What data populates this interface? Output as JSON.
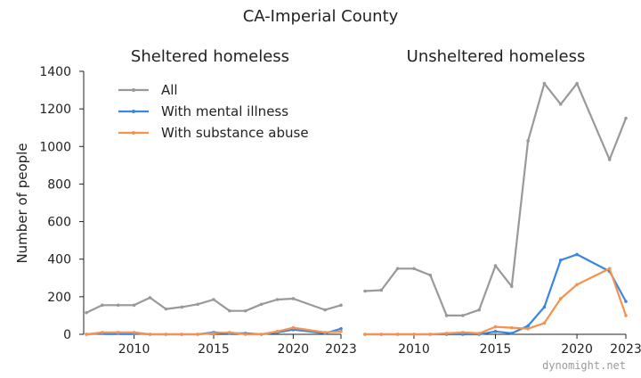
{
  "chart_data": {
    "type": "line",
    "title": "CA-Imperial County",
    "ylabel": "Number of people",
    "ylim": [
      0,
      1400
    ],
    "yticks": [
      0,
      200,
      400,
      600,
      800,
      1000,
      1200,
      1400
    ],
    "xlim": [
      2007,
      2023
    ],
    "xticks": [
      2010,
      2015,
      2020,
      2023
    ],
    "legend": {
      "placement": "top-left",
      "entries": [
        "All",
        "With mental illness",
        "With substance abuse"
      ]
    },
    "series_colors": {
      "All": "#999999",
      "With mental illness": "#3a86e0",
      "With substance abuse": "#f5924e"
    },
    "watermark": "dynomight.net",
    "panels": [
      {
        "subtitle": "Sheltered homeless",
        "series": [
          {
            "name": "All",
            "x": [
              2007,
              2008,
              2009,
              2010,
              2011,
              2012,
              2013,
              2014,
              2015,
              2016,
              2017,
              2018,
              2019,
              2020,
              2022,
              2023
            ],
            "values": [
              115,
              155,
              155,
              155,
              195,
              135,
              145,
              160,
              185,
              125,
              125,
              160,
              185,
              190,
              130,
              155
            ]
          },
          {
            "name": "With mental illness",
            "x": [
              2007,
              2008,
              2009,
              2010,
              2011,
              2012,
              2013,
              2014,
              2015,
              2016,
              2017,
              2018,
              2019,
              2020,
              2022,
              2023
            ],
            "values": [
              0,
              5,
              5,
              5,
              0,
              0,
              0,
              0,
              10,
              5,
              5,
              0,
              10,
              25,
              5,
              30
            ]
          },
          {
            "name": "With substance abuse",
            "x": [
              2007,
              2008,
              2009,
              2010,
              2011,
              2012,
              2013,
              2014,
              2015,
              2016,
              2017,
              2018,
              2019,
              2020,
              2022,
              2023
            ],
            "values": [
              0,
              10,
              10,
              10,
              0,
              0,
              0,
              0,
              5,
              10,
              0,
              0,
              15,
              35,
              10,
              15
            ]
          }
        ]
      },
      {
        "subtitle": "Unsheltered homeless",
        "series": [
          {
            "name": "All",
            "x": [
              2007,
              2008,
              2009,
              2010,
              2011,
              2012,
              2013,
              2014,
              2015,
              2016,
              2017,
              2018,
              2019,
              2020,
              2022,
              2023
            ],
            "values": [
              230,
              235,
              350,
              350,
              315,
              100,
              100,
              130,
              365,
              255,
              1030,
              1335,
              1225,
              1335,
              930,
              1150
            ]
          },
          {
            "name": "With mental illness",
            "x": [
              2007,
              2008,
              2009,
              2010,
              2011,
              2012,
              2013,
              2014,
              2015,
              2016,
              2017,
              2018,
              2019,
              2020,
              2022,
              2023
            ],
            "values": [
              0,
              0,
              0,
              0,
              0,
              0,
              0,
              0,
              15,
              5,
              45,
              145,
              395,
              425,
              335,
              175
            ]
          },
          {
            "name": "With substance abuse",
            "x": [
              2007,
              2008,
              2009,
              2010,
              2011,
              2012,
              2013,
              2014,
              2015,
              2016,
              2017,
              2018,
              2019,
              2020,
              2022,
              2023
            ],
            "values": [
              0,
              0,
              0,
              0,
              0,
              5,
              10,
              5,
              40,
              35,
              30,
              60,
              190,
              265,
              350,
              100
            ]
          }
        ]
      }
    ]
  }
}
